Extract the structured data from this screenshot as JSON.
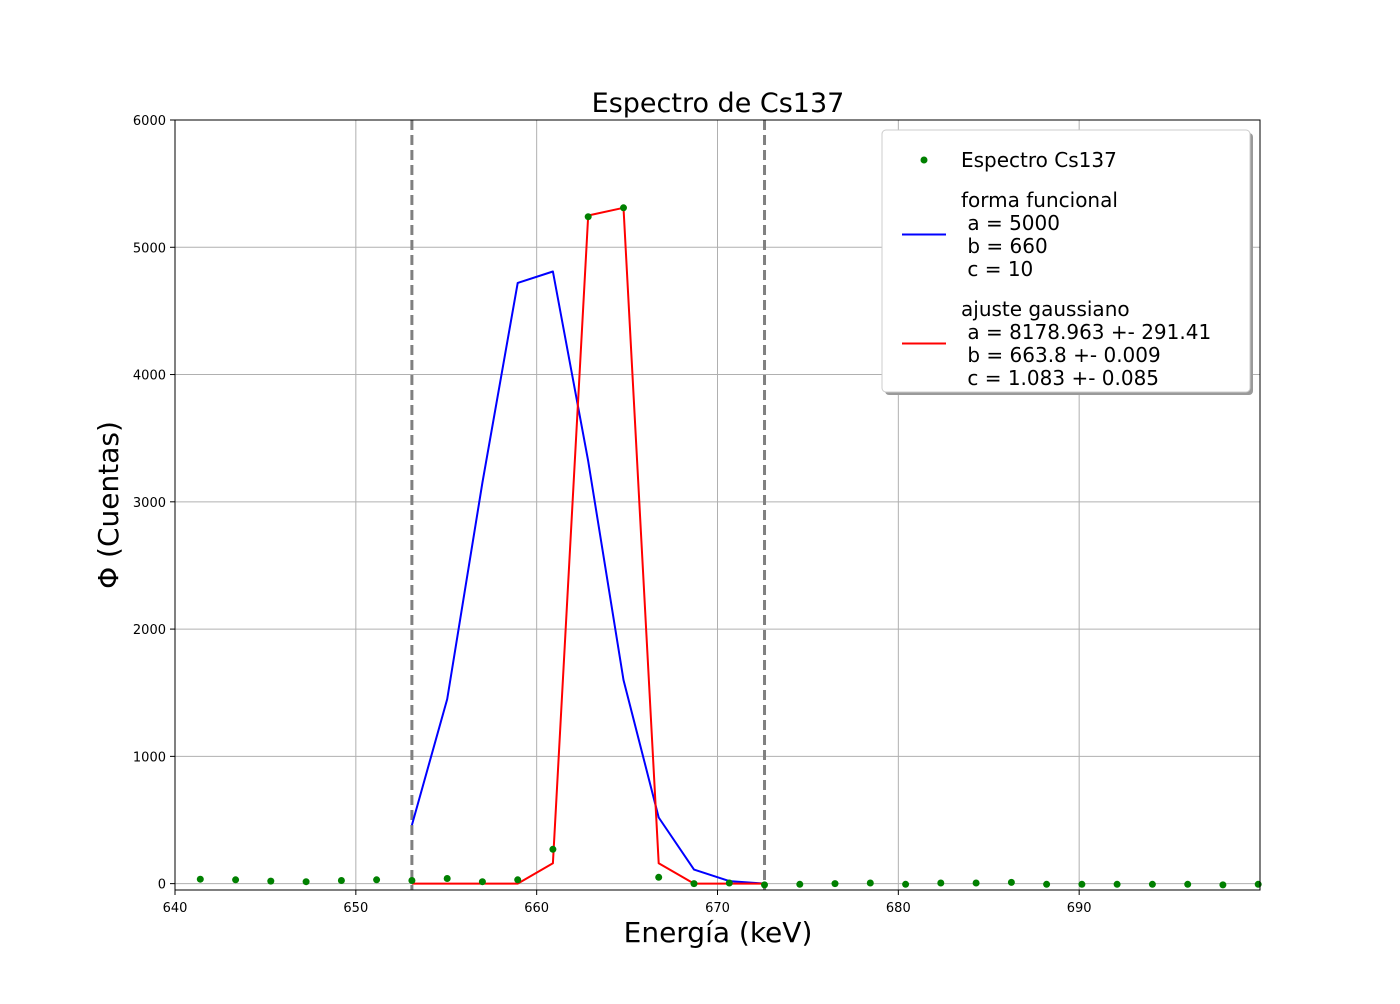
{
  "chart_data": {
    "type": "line",
    "title": "Espectro de Cs137",
    "xlabel": "Energía (keV)",
    "ylabel": "Φ (Cuentas)",
    "xlim": [
      640,
      700
    ],
    "ylim": [
      -50,
      6000
    ],
    "grid": true,
    "legend_placement": "top-right",
    "x_ticks": [
      640,
      650,
      660,
      670,
      680,
      690
    ],
    "x_tick_labels": [
      "640",
      "650",
      "660",
      "670",
      "680",
      "690"
    ],
    "y_ticks": [
      0,
      1000,
      2000,
      3000,
      4000,
      5000,
      6000
    ],
    "y_tick_labels": [
      "0",
      "1000",
      "2000",
      "3000",
      "4000",
      "5000",
      "6000"
    ],
    "vlines": [
      {
        "x": 653.1,
        "color": "#808080",
        "style": "dashed"
      },
      {
        "x": 672.6,
        "color": "#808080",
        "style": "dashed"
      }
    ],
    "series": [
      {
        "name": "Espectro Cs137",
        "kind": "scatter",
        "color": "#008000",
        "x": [
          641.4,
          643.35,
          645.3,
          647.25,
          649.2,
          651.15,
          653.1,
          655.05,
          657.0,
          658.95,
          660.9,
          662.85,
          664.8,
          666.75,
          668.7,
          670.65,
          672.6,
          674.55,
          676.5,
          678.45,
          680.4,
          682.35,
          684.3,
          686.25,
          688.2,
          690.15,
          692.1,
          694.05,
          696.0,
          697.95,
          699.9
        ],
        "y": [
          35,
          30,
          20,
          15,
          25,
          30,
          25,
          40,
          15,
          30,
          270,
          5240,
          5310,
          50,
          0,
          5,
          -10,
          -5,
          0,
          5,
          -5,
          5,
          5,
          10,
          -5,
          -5,
          -5,
          -5,
          -5,
          -10,
          -5
        ]
      },
      {
        "name": "forma funcional\n a = 5000\n b = 660\n c = 10",
        "kind": "line",
        "color": "#0000ff",
        "x": [
          653.1,
          655.05,
          657.0,
          658.95,
          660.9,
          662.85,
          664.8,
          666.75,
          668.7,
          670.65,
          672.6
        ],
        "y": [
          460,
          1450,
          3150,
          4720,
          4810,
          3320,
          1600,
          520,
          110,
          20,
          0
        ]
      },
      {
        "name": "ajuste gaussiano\n a = 8178.963 +- 291.41\n b = 663.8 +- 0.009\n c = 1.083 +- 0.085",
        "kind": "line",
        "color": "#ff0000",
        "x": [
          653.1,
          655.05,
          657.0,
          658.95,
          660.9,
          662.85,
          664.8,
          666.75,
          668.7,
          670.65,
          672.6
        ],
        "y": [
          0,
          0,
          0,
          0,
          160,
          5250,
          5310,
          160,
          0,
          0,
          0
        ]
      }
    ]
  }
}
